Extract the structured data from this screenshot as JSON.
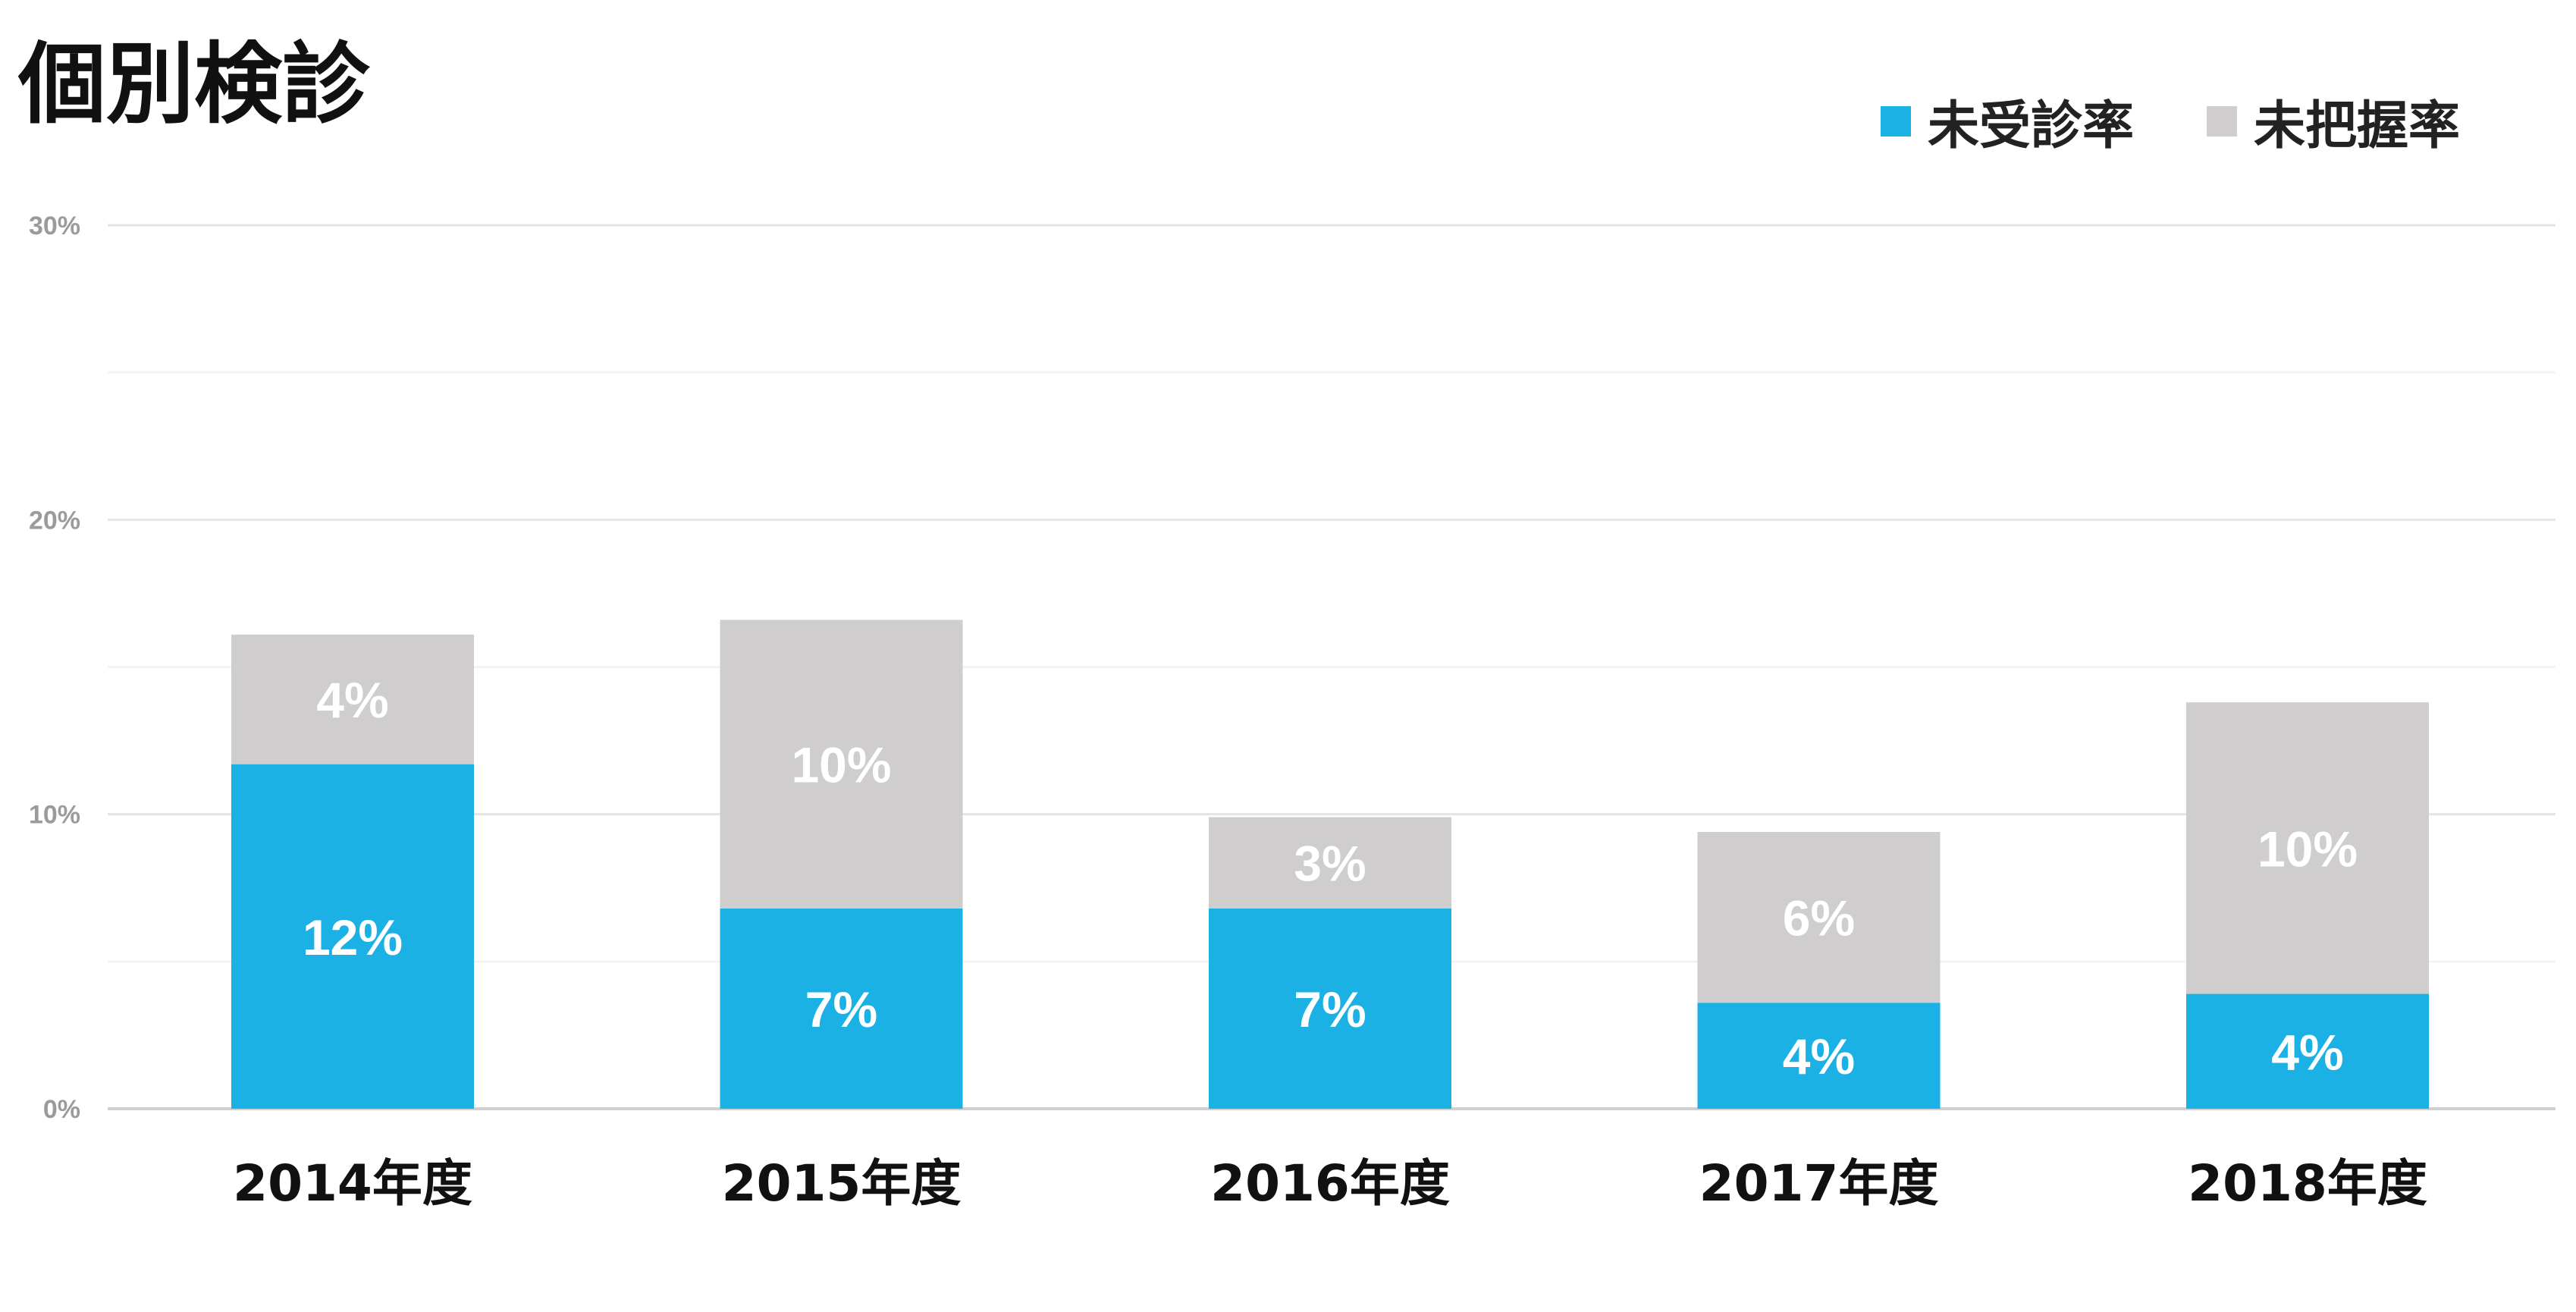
{
  "chart_data": {
    "type": "bar",
    "stacked": true,
    "title": "個別検診",
    "categories": [
      "2014年度",
      "2015年度",
      "2016年度",
      "2017年度",
      "2018年度"
    ],
    "series": [
      {
        "name": "未受診率",
        "color": "#1bb1e4",
        "values": [
          11.7,
          6.8,
          6.8,
          3.6,
          3.9
        ],
        "labels": [
          "12%",
          "7%",
          "7%",
          "4%",
          "4%"
        ]
      },
      {
        "name": "未把握率",
        "color": "#cfcdce",
        "values": [
          4.4,
          9.8,
          3.1,
          5.8,
          9.9
        ],
        "labels": [
          "4%",
          "10%",
          "3%",
          "6%",
          "10%"
        ]
      }
    ],
    "ylim": [
      0,
      30
    ],
    "yticks": [
      0,
      10,
      20,
      30
    ],
    "ytick_labels": [
      "0%",
      "10%",
      "20%",
      "30%"
    ],
    "grid": true,
    "legend_position": "top-right",
    "xlabel": "",
    "ylabel": ""
  }
}
